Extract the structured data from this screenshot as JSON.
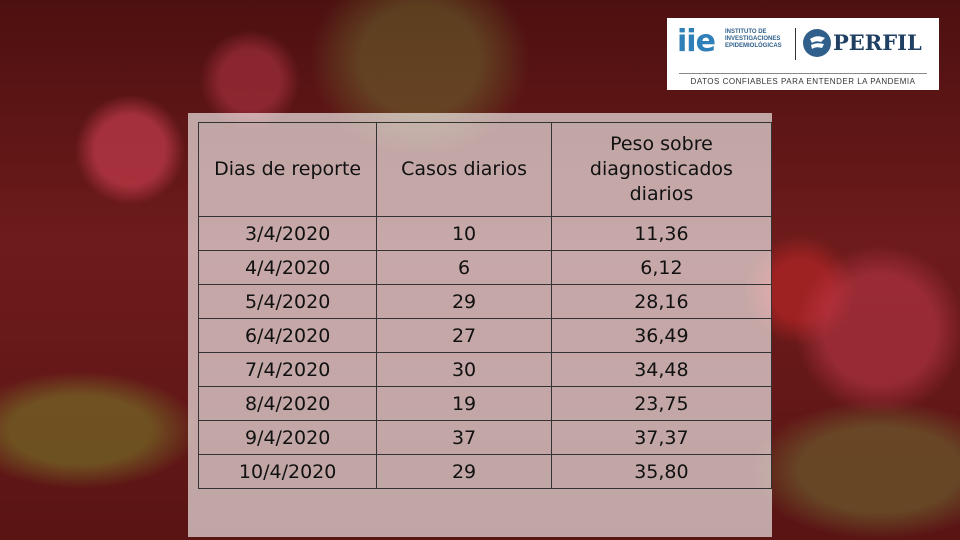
{
  "logo": {
    "iie_mark": "iie",
    "iie_text_line1": "INSTITUTO DE",
    "iie_text_line2": "INVESTIGACIONES",
    "iie_text_line3": "EPIDEMIOLÓGICAS",
    "perfil_text": "PERFIL",
    "tagline": "DATOS CONFIABLES PARA ENTENDER LA PANDEMIA"
  },
  "table": {
    "headers": [
      "Dias de reporte",
      "Casos diarios",
      "Peso sobre diagnosticados diarios"
    ],
    "rows": [
      [
        "3/4/2020",
        "10",
        "11,36"
      ],
      [
        "4/4/2020",
        "6",
        "6,12"
      ],
      [
        "5/4/2020",
        "29",
        "28,16"
      ],
      [
        "6/4/2020",
        "27",
        "36,49"
      ],
      [
        "7/4/2020",
        "30",
        "34,48"
      ],
      [
        "8/4/2020",
        "19",
        "23,75"
      ],
      [
        "9/4/2020",
        "37",
        "37,37"
      ],
      [
        "10/4/2020",
        "29",
        "35,80"
      ]
    ]
  },
  "colors": {
    "background": "#5e1616",
    "iie_blue": "#2f7fb8",
    "perfil_navy": "#1f3f63"
  }
}
